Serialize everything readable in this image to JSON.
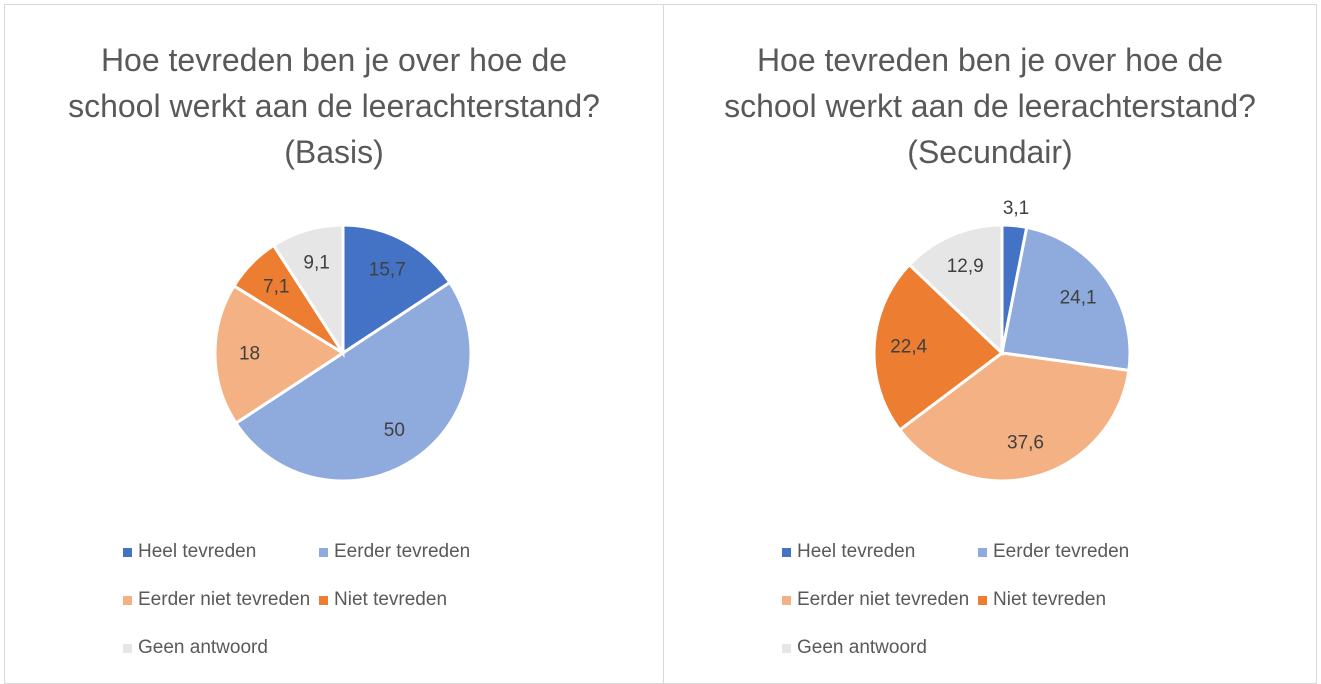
{
  "chart_data": [
    {
      "type": "pie",
      "title": "Hoe tevreden ben je over hoe de school werkt aan de leerachterstand? (Basis)",
      "categories": [
        "Heel tevreden",
        "Eerder tevreden",
        "Eerder niet tevreden",
        "Niet tevreden",
        "Geen antwoord"
      ],
      "values": [
        15.7,
        50,
        18,
        7.1,
        9.1
      ],
      "value_labels": [
        "15,7",
        "50",
        "18",
        "7,1",
        "9,1"
      ],
      "colors": [
        "#4472c4",
        "#8faadc",
        "#f4b183",
        "#ed7d31",
        "#e7e6e6"
      ]
    },
    {
      "type": "pie",
      "title": "Hoe tevreden ben je over hoe de school werkt aan de leerachterstand? (Secundair)",
      "categories": [
        "Heel tevreden",
        "Eerder tevreden",
        "Eerder niet tevreden",
        "Niet tevreden",
        "Geen antwoord"
      ],
      "values": [
        3.1,
        24.1,
        37.6,
        22.4,
        12.9
      ],
      "value_labels": [
        "3,1",
        "24,1",
        "37,6",
        "22,4",
        "12,9"
      ],
      "colors": [
        "#4472c4",
        "#8faadc",
        "#f4b183",
        "#ed7d31",
        "#e7e6e6"
      ]
    }
  ]
}
